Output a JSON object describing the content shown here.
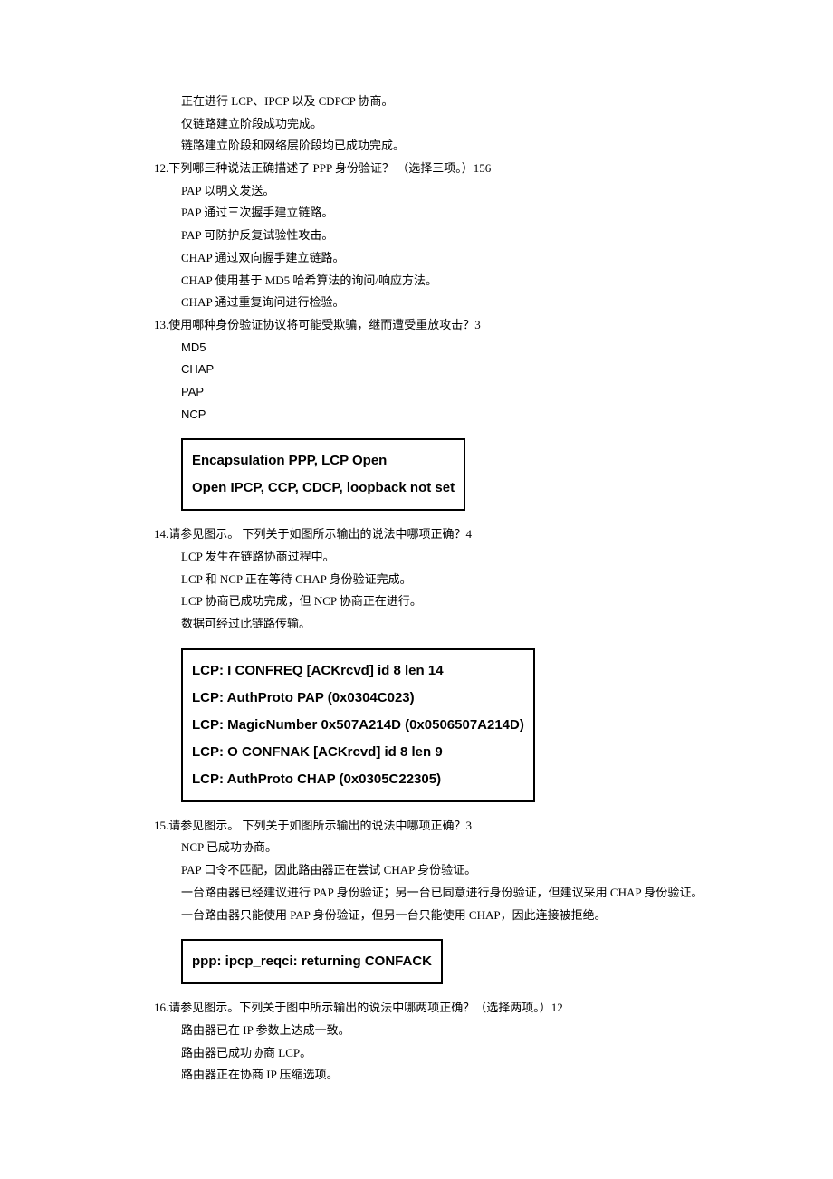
{
  "block11_extra": [
    "正在进行 LCP、IPCP 以及 CDPCP 协商。",
    "仅链路建立阶段成功完成。",
    "链路建立阶段和网络层阶段均已成功完成。"
  ],
  "q12": {
    "prompt": "12.下列哪三种说法正确描述了 PPP 身份验证？ （选择三项。）156",
    "options": [
      "PAP 以明文发送。",
      "PAP 通过三次握手建立链路。",
      "PAP 可防护反复试验性攻击。",
      "CHAP 通过双向握手建立链路。",
      "CHAP 使用基于 MD5 哈希算法的询问/响应方法。",
      "CHAP 通过重复询问进行检验。"
    ]
  },
  "q13": {
    "prompt": "13.使用哪种身份验证协议将可能受欺骗，继而遭受重放攻击？3",
    "options": [
      "MD5",
      "CHAP",
      "PAP",
      "NCP"
    ]
  },
  "box1": [
    "Encapsulation PPP, LCP Open",
    "Open IPCP, CCP, CDCP, loopback not set"
  ],
  "q14": {
    "prompt": "14.请参见图示。 下列关于如图所示输出的说法中哪项正确？4",
    "options": [
      "LCP 发生在链路协商过程中。",
      "LCP 和 NCP 正在等待 CHAP 身份验证完成。",
      "LCP 协商已成功完成，但 NCP 协商正在进行。",
      "数据可经过此链路传输。"
    ]
  },
  "box2": [
    "LCP: I CONFREQ [ACKrcvd] id 8 len 14",
    "LCP: AuthProto PAP (0x0304C023)",
    "LCP: MagicNumber 0x507A214D (0x0506507A214D)",
    "LCP: O CONFNAK [ACKrcvd] id 8 len 9",
    "LCP: AuthProto CHAP (0x0305C22305)"
  ],
  "q15": {
    "prompt": "15.请参见图示。 下列关于如图所示输出的说法中哪项正确？3",
    "options": [
      "NCP 已成功协商。",
      "PAP 口令不匹配，因此路由器正在尝试 CHAP 身份验证。",
      "一台路由器已经建议进行 PAP 身份验证；另一台已同意进行身份验证，但建议采用 CHAP 身份验证。",
      "一台路由器只能使用 PAP 身份验证，但另一台只能使用 CHAP，因此连接被拒绝。"
    ]
  },
  "box3": [
    "ppp: ipcp_reqci: returning CONFACK"
  ],
  "q16": {
    "prompt": "16.请参见图示。下列关于图中所示输出的说法中哪两项正确？（选择两项。）12",
    "options": [
      "路由器已在 IP 参数上达成一致。",
      "路由器已成功协商 LCP。",
      "路由器正在协商 IP 压缩选项。"
    ]
  }
}
